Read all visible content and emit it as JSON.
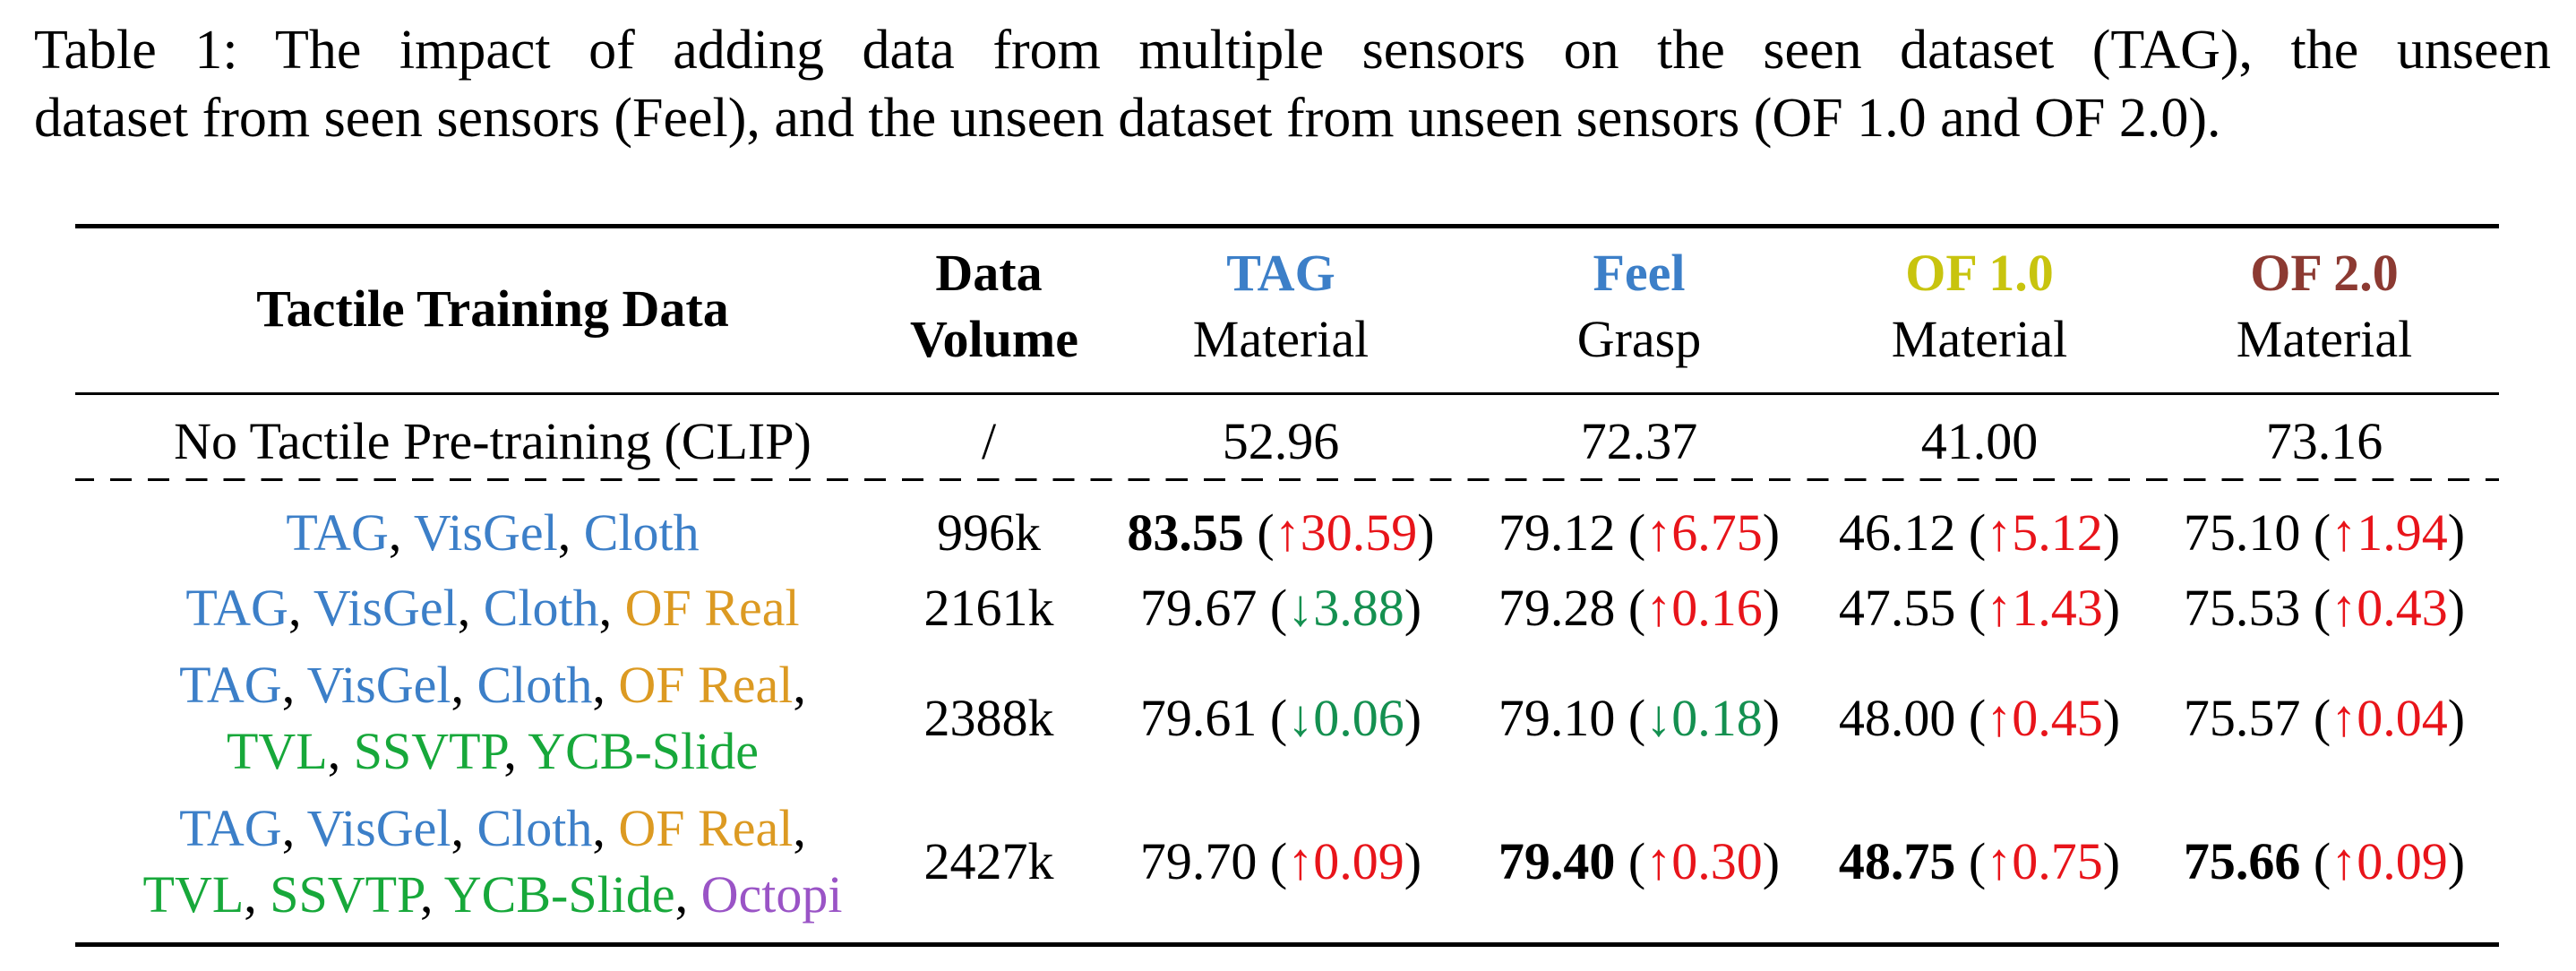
{
  "caption": {
    "line1": "Table 1: The impact of adding data from multiple sensors on the seen dataset (TAG), the unseen",
    "line2": "dataset from seen sensors (Feel), and the unseen dataset from unseen sensors (OF 1.0  and OF 2.0)."
  },
  "header": {
    "training_data": "Tactile Training Data",
    "volume_line1": "Data",
    "volume_line2": "Volume",
    "tag_name": "TAG",
    "tag_task": "Material",
    "feel_name": "Feel",
    "feel_task": "Grasp",
    "of1_name": "OF 1.0",
    "of1_task": "Material",
    "of2_name": "OF 2.0",
    "of2_task": "Material"
  },
  "colors": {
    "tag": "#3c7fc8",
    "feel": "#3c7fc8",
    "of1": "#c8c40e",
    "of2": "#8c3a32",
    "up": "#e8141a",
    "down": "#149050",
    "dataset_blue": "#3c7fc8",
    "dataset_orange": "#dc9a22",
    "dataset_green": "#17a83a",
    "dataset_purple": "#9a54c6"
  },
  "baseline": {
    "name": "No Tactile Pre-training (CLIP)",
    "volume": "/",
    "tag": "52.96",
    "feel": "72.37",
    "of1": "41.00",
    "of2": "73.16"
  },
  "rows": [
    {
      "datasets": [
        "TAG",
        "VisGel",
        "Cloth"
      ],
      "volume": "996k",
      "tag": "83.55",
      "tag_delta": "↑30.59",
      "feel": "79.12",
      "feel_delta": "↑6.75",
      "of1": "46.12",
      "of1_delta": "↑5.12",
      "of2": "75.10",
      "of2_delta": "↑1.94"
    },
    {
      "datasets": [
        "TAG",
        "VisGel",
        "Cloth",
        "OF Real"
      ],
      "volume": "2161k",
      "tag": "79.67",
      "tag_delta": "↓3.88",
      "feel": "79.28",
      "feel_delta": "↑0.16",
      "of1": "47.55",
      "of1_delta": "↑1.43",
      "of2": "75.53",
      "of2_delta": "↑0.43"
    },
    {
      "datasets": [
        "TAG",
        "VisGel",
        "Cloth",
        "OF Real",
        "TVL",
        "SSVTP",
        "YCB-Slide"
      ],
      "volume": "2388k",
      "tag": "79.61",
      "tag_delta": "↓0.06",
      "feel": "79.10",
      "feel_delta": "↓0.18",
      "of1": "48.00",
      "of1_delta": "↑0.45",
      "of2": "75.57",
      "of2_delta": "↑0.04"
    },
    {
      "datasets": [
        "TAG",
        "VisGel",
        "Cloth",
        "OF Real",
        "TVL",
        "SSVTP",
        "YCB-Slide",
        "Octopi"
      ],
      "volume": "2427k",
      "tag": "79.70",
      "tag_delta": "↑0.09",
      "feel": "79.40",
      "feel_delta": "↑0.30",
      "of1": "48.75",
      "of1_delta": "↑0.75",
      "of2": "75.66",
      "of2_delta": "↑0.09"
    }
  ]
}
